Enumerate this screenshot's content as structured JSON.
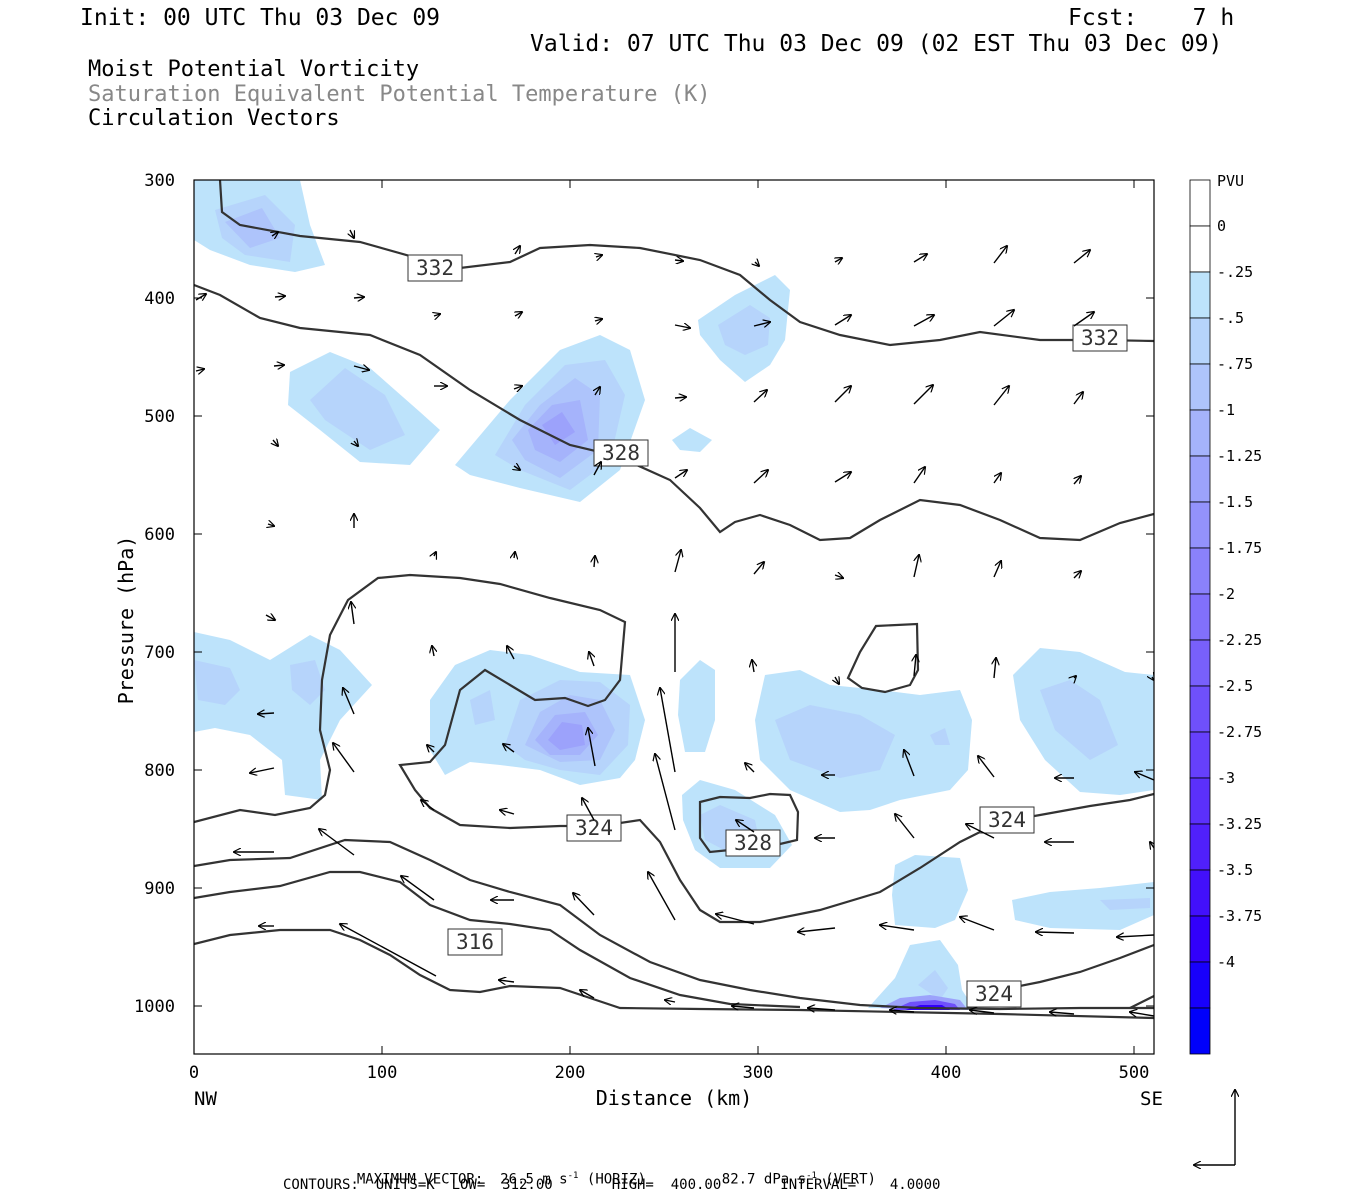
{
  "header": {
    "init": "Init: 00 UTC Thu 03 Dec 09",
    "fcst": "Fcst:    7 h",
    "valid": "Valid: 07 UTC Thu 03 Dec 09 (02 EST Thu 03 Dec 09)",
    "field1": "Moist Potential Vorticity",
    "field2": "Saturation Equivalent Potential Temperature (K)",
    "field3": "Circulation Vectors"
  },
  "chart_data": {
    "type": "cross-section",
    "xlabel": "Distance (km)",
    "ylabel": "Pressure (hPa)",
    "xlim": [
      0,
      512
    ],
    "ylim": [
      1040,
      300
    ],
    "x_ticks": [
      "0",
      "100",
      "200",
      "300",
      "400",
      "500"
    ],
    "y_ticks": [
      "300",
      "400",
      "500",
      "600",
      "700",
      "800",
      "900",
      "1000"
    ],
    "x_end_labels": {
      "left": "NW",
      "right": "SE"
    },
    "contour_labels": [
      "332",
      "332",
      "328",
      "324",
      "328",
      "324",
      "316",
      "324"
    ],
    "colorbar": {
      "unit": "PVU",
      "levels": [
        "0",
        "-.25",
        "-.5",
        "-.75",
        "-1",
        "-1.25",
        "-1.5",
        "-1.75",
        "-2",
        "-2.25",
        "-2.5",
        "-2.75",
        "-3",
        "-3.25",
        "-3.5",
        "-3.75",
        "-4"
      ],
      "colors": [
        "#ffffff",
        "#ffffff",
        "#bde3fb",
        "#b6d4fb",
        "#aec4fb",
        "#a5b3fb",
        "#9ca2fb",
        "#9392fb",
        "#8a81fb",
        "#8170fb",
        "#7860fb",
        "#6f50fb",
        "#6640fb",
        "#5b30fb",
        "#5020fb",
        "#4210fb",
        "#3200fb",
        "#1800fb",
        "#0000fb"
      ]
    },
    "contours_K": {
      "low": 312.0,
      "high": 400.0,
      "interval": 4.0
    },
    "max_vector": {
      "horiz": "26.5",
      "vert": "82.7"
    }
  },
  "footer": {
    "max_vector_label": "MAXIMUM VECTOR:",
    "horiz_value": "26.5",
    "horiz_unit_pre": "m s",
    "horiz_unit_sup": "-1",
    "horiz_tag": "(HORIZ)",
    "vert_value": "82.7",
    "vert_unit_pre": "dPa s",
    "vert_unit_sup": "-1",
    "vert_tag": "(VERT)",
    "contours_line": "CONTOURS:  UNITS=K  LOW=  312.00       HIGH=  400.00       INTERVAL=    4.0000"
  }
}
